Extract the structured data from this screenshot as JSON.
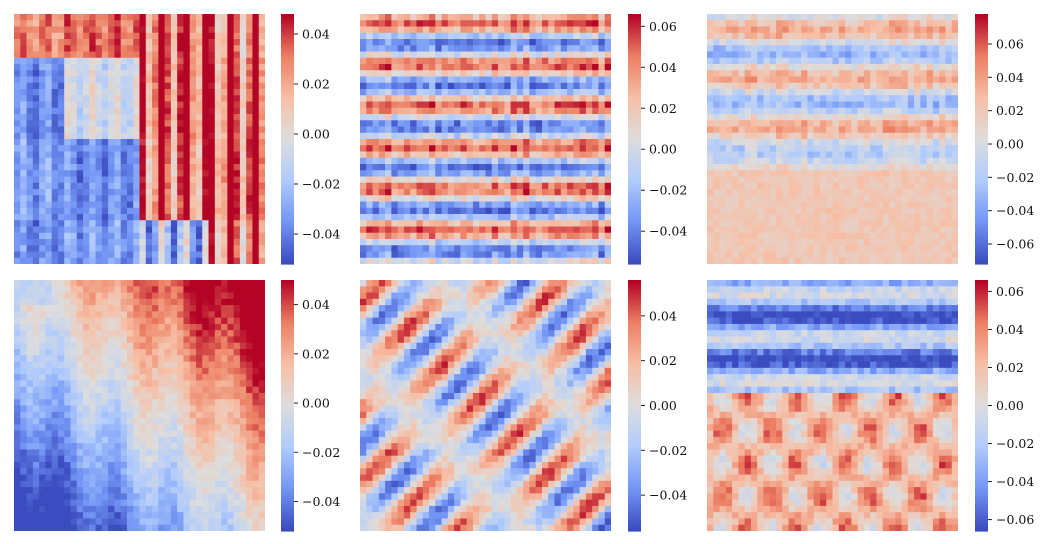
{
  "figure": {
    "colormap": "coolwarm",
    "colormap_stops": [
      "#3b4cc0",
      "#7396f5",
      "#b0cbfc",
      "#dddddd",
      "#f6bfa6",
      "#ec7f63",
      "#b40426"
    ]
  },
  "chart_data": [
    {
      "type": "heatmap",
      "panel": "top-left",
      "grid_size": [
        40,
        40
      ],
      "vmin": -0.052,
      "vmax": 0.048,
      "colorbar_ticks": [
        -0.04,
        -0.02,
        0.0,
        0.02,
        0.04
      ],
      "colorbar_tick_labels": [
        "−0.04",
        "−0.02",
        "0.00",
        "0.02",
        "0.04"
      ],
      "structure": "block-structured correlation (clusters with strong positive within-block and negative between-block values)",
      "seed": 11
    },
    {
      "type": "heatmap",
      "panel": "top-middle",
      "grid_size": [
        40,
        40
      ],
      "vmin": -0.056,
      "vmax": 0.066,
      "colorbar_ticks": [
        -0.04,
        -0.02,
        0.0,
        0.02,
        0.04,
        0.06
      ],
      "colorbar_tick_labels": [
        "−0.04",
        "−0.02",
        "0.00",
        "0.02",
        "0.04",
        "0.06"
      ],
      "structure": "horizontal banding with alternating positive and negative rows",
      "seed": 23
    },
    {
      "type": "heatmap",
      "panel": "top-right",
      "grid_size": [
        40,
        40
      ],
      "vmin": -0.072,
      "vmax": 0.078,
      "colorbar_ticks": [
        -0.06,
        -0.04,
        -0.02,
        0.0,
        0.02,
        0.04,
        0.06
      ],
      "colorbar_tick_labels": [
        "−0.06",
        "−0.04",
        "−0.02",
        "0.00",
        "0.02",
        "0.04",
        "0.06"
      ],
      "structure": "weak banding, mostly near-zero with scattered positive rows",
      "seed": 37
    },
    {
      "type": "heatmap",
      "panel": "bottom-left",
      "grid_size": [
        40,
        40
      ],
      "vmin": -0.052,
      "vmax": 0.05,
      "colorbar_ticks": [
        -0.04,
        -0.02,
        0.0,
        0.02,
        0.04
      ],
      "colorbar_tick_labels": [
        "−0.04",
        "−0.02",
        "0.00",
        "0.02",
        "0.04"
      ],
      "structure": "smooth ordered structure: positive in upper-right region, negative in lower-left region",
      "seed": 41
    },
    {
      "type": "heatmap",
      "panel": "bottom-middle",
      "grid_size": [
        40,
        40
      ],
      "vmin": -0.056,
      "vmax": 0.056,
      "colorbar_ticks": [
        -0.04,
        -0.02,
        0.0,
        0.02,
        0.04
      ],
      "colorbar_tick_labels": [
        "−0.04",
        "−0.02",
        "0.00",
        "0.02",
        "0.04"
      ],
      "structure": "diagonal wave / checkerboard interference pattern",
      "seed": 53
    },
    {
      "type": "heatmap",
      "panel": "bottom-right",
      "grid_size": [
        40,
        40
      ],
      "vmin": -0.066,
      "vmax": 0.066,
      "colorbar_ticks": [
        -0.06,
        -0.04,
        -0.02,
        0.0,
        0.02,
        0.04,
        0.06
      ],
      "colorbar_tick_labels": [
        "−0.06",
        "−0.04",
        "−0.02",
        "0.00",
        "0.02",
        "0.04",
        "0.06"
      ],
      "structure": "negative bands in upper half, positive blotches in lower half",
      "seed": 67
    }
  ]
}
